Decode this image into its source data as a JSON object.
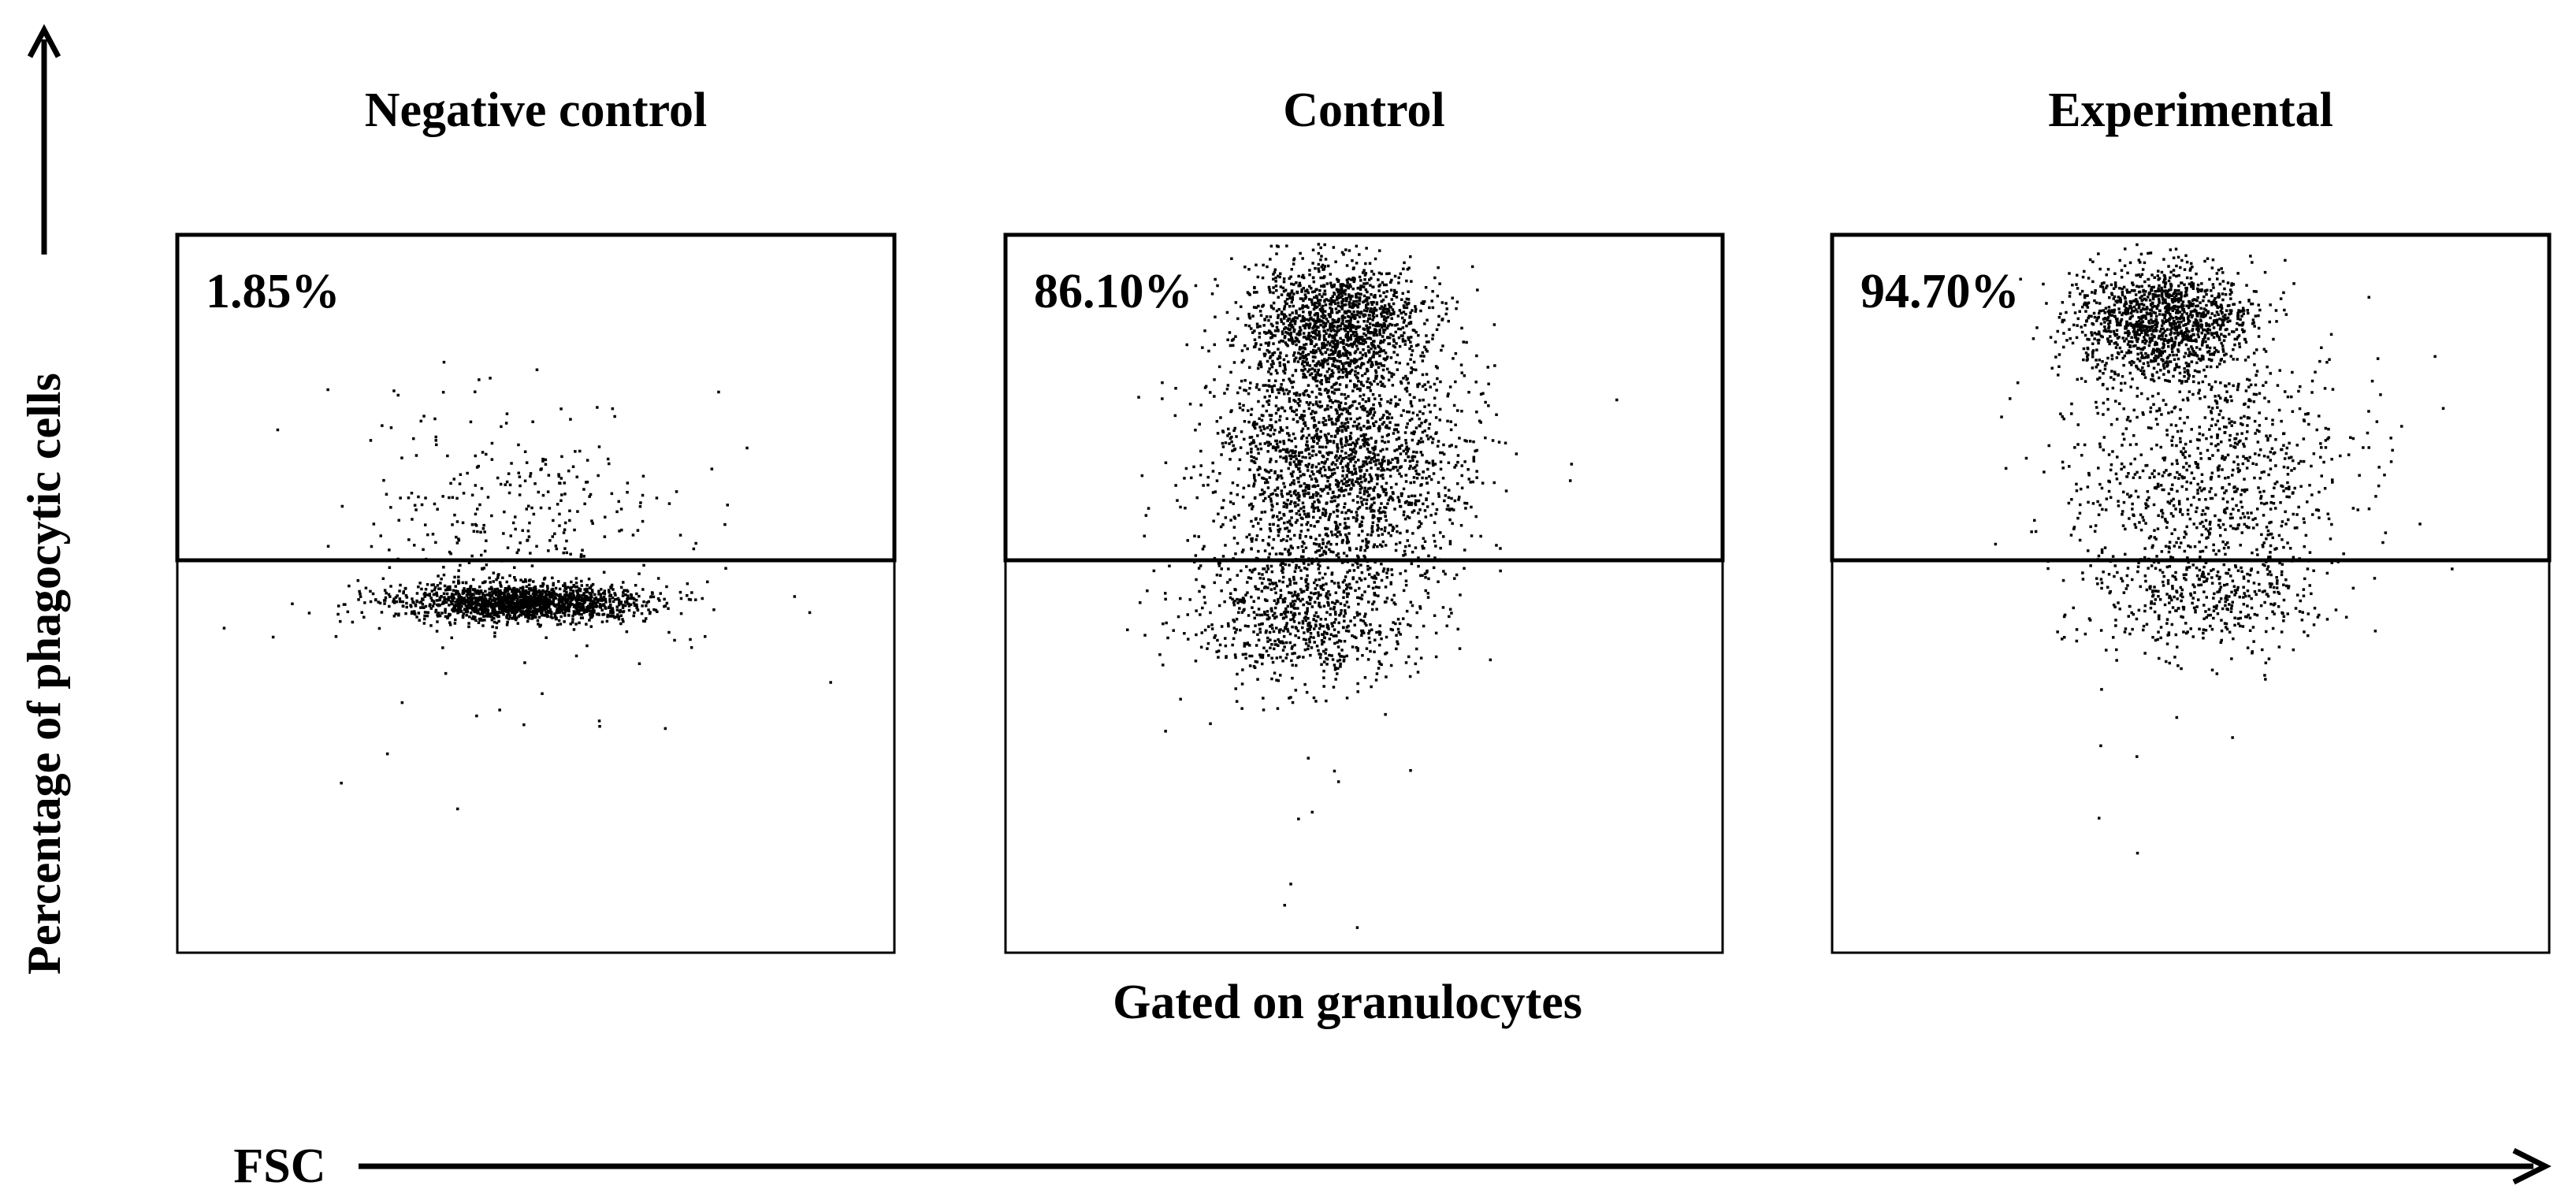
{
  "y_label": "Percentage of phagocytic cells",
  "x_label": "FSC",
  "subtitle": "Gated on granulocytes",
  "panels": [
    {
      "title": "Negative control",
      "gate_label": "1.85%"
    },
    {
      "title": "Control",
      "gate_label": "86.10%"
    },
    {
      "title": "Experimental",
      "gate_label": "94.70%"
    }
  ]
}
